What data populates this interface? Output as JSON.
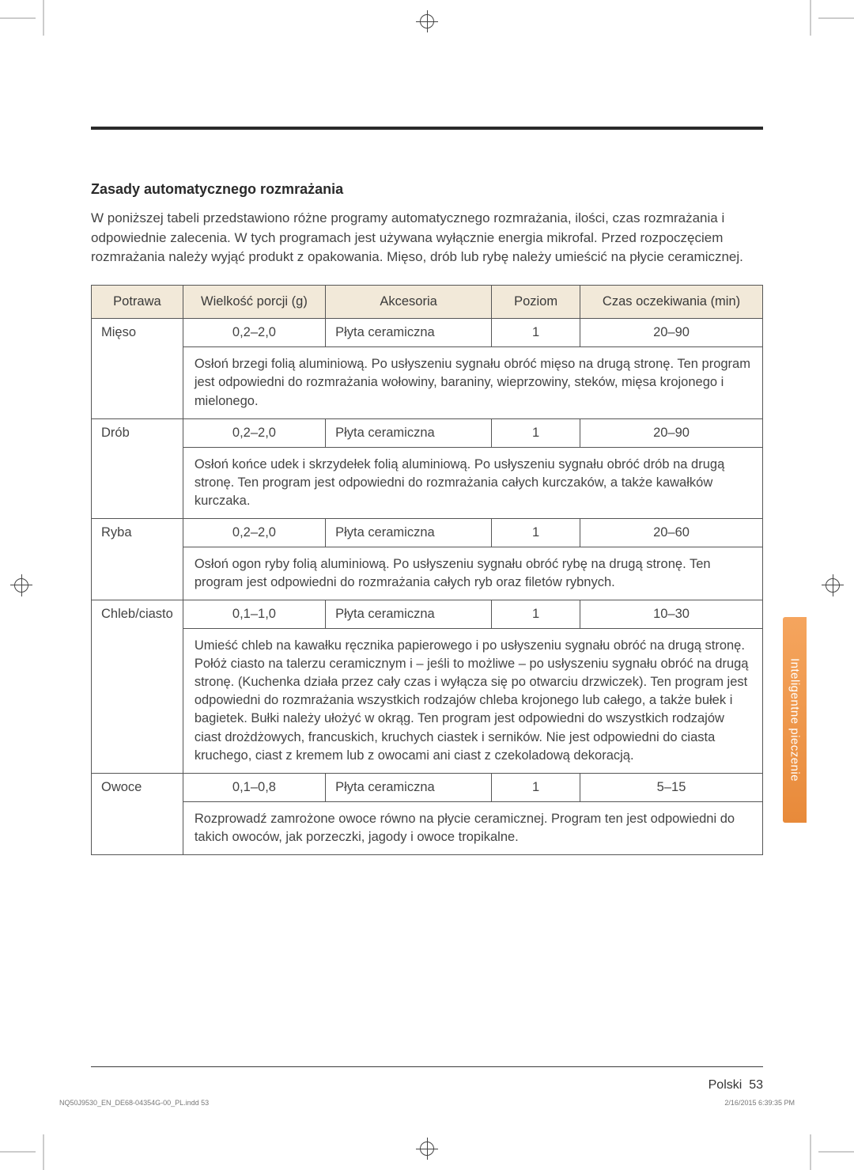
{
  "crop_marks": {},
  "section_title": "Zasady automatycznego rozmrażania",
  "intro": "W poniższej tabeli przedstawiono różne programy automatycznego rozmrażania, ilości, czas rozmrażania i odpowiednie zalecenia. W tych programach jest używana wyłącznie energia mikrofal. Przed rozpoczęciem rozmrażania należy wyjąć produkt z opakowania. Mięso, drób lub rybę należy umieścić na płycie ceramicznej.",
  "table": {
    "headers": {
      "col1": "Potrawa",
      "col2": "Wielkość porcji (g)",
      "col3": "Akcesoria",
      "col4": "Poziom",
      "col5": "Czas oczekiwania (min)"
    },
    "rows": [
      {
        "name": "Mięso",
        "size": "0,2–2,0",
        "acc": "Płyta ceramiczna",
        "level": "1",
        "time": "20–90",
        "desc": "Osłoń brzegi folią aluminiową. Po usłyszeniu sygnału obróć mięso na drugą stronę. Ten program jest odpowiedni do rozmrażania wołowiny, baraniny, wieprzowiny, steków, mięsa krojonego i mielonego."
      },
      {
        "name": "Drób",
        "size": "0,2–2,0",
        "acc": "Płyta ceramiczna",
        "level": "1",
        "time": "20–90",
        "desc": "Osłoń końce udek i skrzydełek folią aluminiową. Po usłyszeniu sygnału obróć drób na drugą stronę. Ten program jest odpowiedni do rozmrażania całych kurczaków, a także kawałków kurczaka."
      },
      {
        "name": "Ryba",
        "size": "0,2–2,0",
        "acc": "Płyta ceramiczna",
        "level": "1",
        "time": "20–60",
        "desc": "Osłoń ogon ryby folią aluminiową. Po usłyszeniu sygnału obróć rybę na drugą stronę. Ten program jest odpowiedni do rozmrażania całych ryb oraz filetów rybnych."
      },
      {
        "name": "Chleb/ciasto",
        "size": "0,1–1,0",
        "acc": "Płyta ceramiczna",
        "level": "1",
        "time": "10–30",
        "desc": "Umieść chleb na kawałku ręcznika papierowego i po usłyszeniu sygnału obróć na drugą stronę. Połóż ciasto na talerzu ceramicznym i – jeśli to możliwe – po usłyszeniu sygnału obróć na drugą stronę. (Kuchenka działa przez cały czas i wyłącza się po otwarciu drzwiczek). Ten program jest odpowiedni do rozmrażania wszystkich rodzajów chleba krojonego lub całego, a także bułek i bagietek. Bułki należy ułożyć w okrąg. Ten program jest odpowiedni do wszystkich rodzajów ciast drożdżowych, francuskich, kruchych ciastek i serników. Nie jest odpowiedni do ciasta kruchego, ciast z kremem lub z owocami ani ciast z czekoladową dekoracją."
      },
      {
        "name": "Owoce",
        "size": "0,1–0,8",
        "acc": "Płyta ceramiczna",
        "level": "1",
        "time": "5–15",
        "desc": "Rozprowadź zamrożone owoce równo na płycie ceramicznej. Program ten jest odpowiedni do takich owoców, jak porzeczki, jagody i owoce tropikalne."
      }
    ]
  },
  "side_tab": "Inteligentne pieczenie",
  "footer_lang": "Polski",
  "footer_page": "53",
  "imprint_left": "NQ50J9530_EN_DE68-04354G-00_PL.indd   53",
  "imprint_right": "2/16/2015   6:39:35 PM"
}
